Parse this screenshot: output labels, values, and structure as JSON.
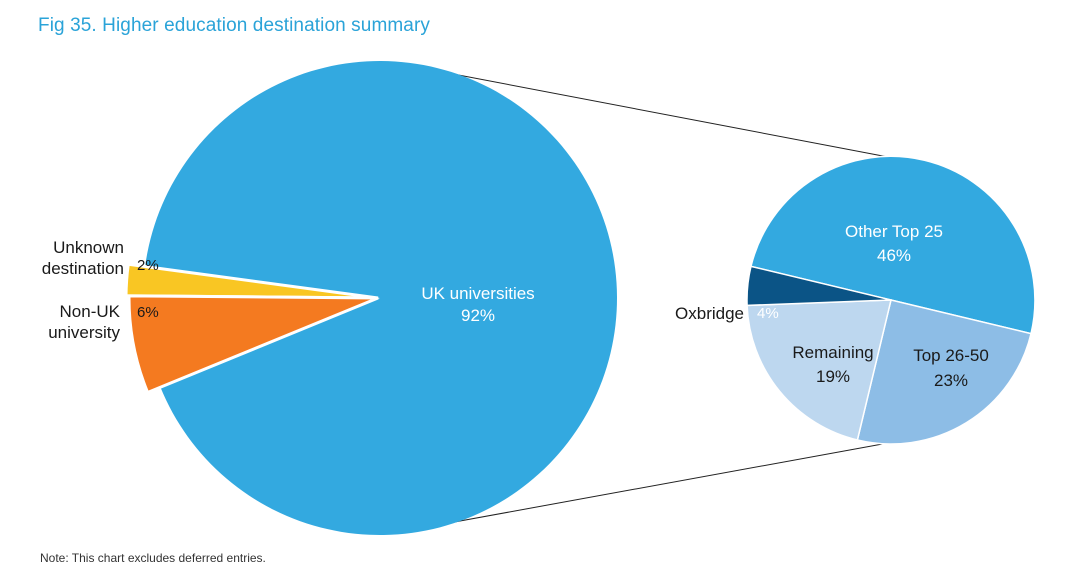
{
  "title": "Fig 35. Higher education destination summary",
  "note": "Note: This chart excludes deferred entries.",
  "chart_data": [
    {
      "type": "pie",
      "slices": [
        {
          "label_lines": [
            "UK universities"
          ],
          "value_text": "92%",
          "value": 92,
          "color": "#33a9e0"
        },
        {
          "label_lines": [
            "Unknown",
            "destination"
          ],
          "value_text": "2%",
          "value": 2,
          "color": "#f9c623"
        },
        {
          "label_lines": [
            "Non-UK",
            "university"
          ],
          "value_text": "6%",
          "value": 6,
          "color": "#f47a20"
        }
      ]
    },
    {
      "type": "pie",
      "slices": [
        {
          "label_lines": [
            "Other Top 25"
          ],
          "value_text": "46%",
          "value": 46,
          "color": "#33a9e0"
        },
        {
          "label_lines": [
            "Top 26-50"
          ],
          "value_text": "23%",
          "value": 23,
          "color": "#8dbde6"
        },
        {
          "label_lines": [
            "Remaining"
          ],
          "value_text": "19%",
          "value": 19,
          "color": "#bdd7ef"
        },
        {
          "label_lines": [
            "Oxbridge"
          ],
          "value_text": "4%",
          "value": 4,
          "color": "#0b5486"
        }
      ]
    }
  ]
}
